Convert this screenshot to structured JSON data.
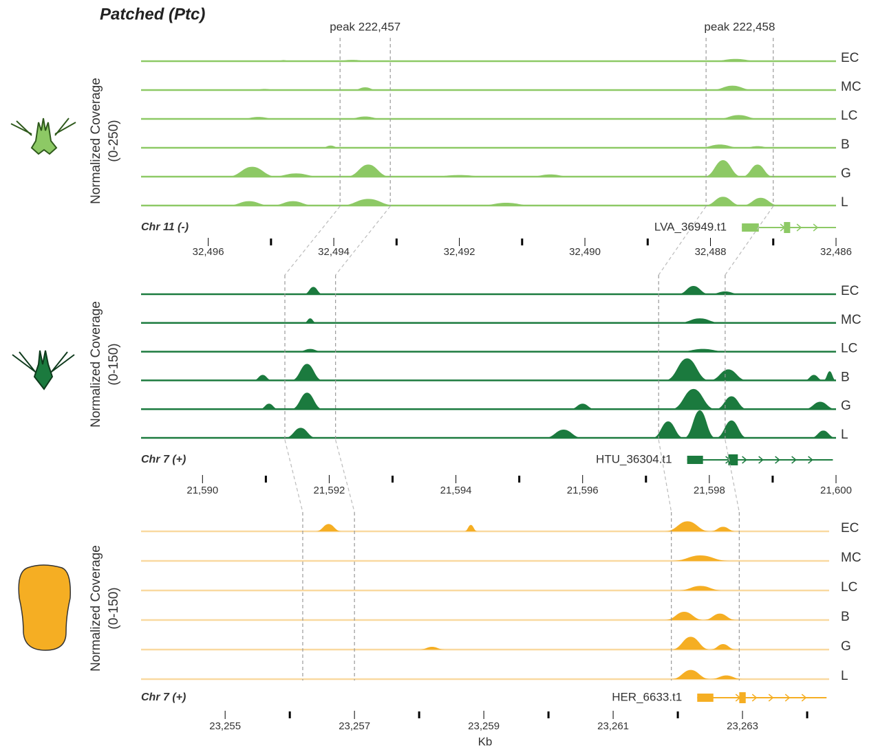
{
  "chart_data": [
    {
      "type": "coverage",
      "title": "Patched (Ptc)",
      "chromosome": "Chr 11 (-)",
      "y_label": "Normalized Coverage",
      "range_label": "(0-250)",
      "ylim": [
        0,
        250
      ],
      "color": "#8dc965",
      "baseline_color": "#8dc965",
      "xlim": [
        32497.07,
        32486.0
      ],
      "xticks": [
        {
          "value": 32496,
          "label": "32,496"
        },
        {
          "value": 32494,
          "label": "32,494"
        },
        {
          "value": 32492,
          "label": "32,492"
        },
        {
          "value": 32490,
          "label": "32,490"
        },
        {
          "value": 32488,
          "label": "32,488"
        },
        {
          "value": 32486,
          "label": "32,486"
        }
      ],
      "minor_ticks": [
        32495,
        32493,
        32491,
        32489,
        32487
      ],
      "peak_regions": [
        {
          "label": "peak 222,457",
          "start": 32493.9,
          "end": 32493.1
        },
        {
          "label": "peak 222,458",
          "start": 32488.07,
          "end": 32487.0
        }
      ],
      "gene": {
        "name": "LVA_36949.t1",
        "start": 32487.5,
        "end": 32486.0,
        "exons": [
          [
            32487.5,
            32487.23
          ],
          [
            32486.83,
            32486.73
          ]
        ]
      },
      "tracks": [
        {
          "name": "EC",
          "peaks": [
            [
              32494.9,
              32494.7,
              10
            ],
            [
              32494.0,
              32493.4,
              12
            ],
            [
              32488.0,
              32487.2,
              20
            ]
          ]
        },
        {
          "name": "MC",
          "peaks": [
            [
              32495.3,
              32494.9,
              10
            ],
            [
              32493.7,
              32493.3,
              25
            ],
            [
              32488.0,
              32487.3,
              40
            ]
          ]
        },
        {
          "name": "LC",
          "peaks": [
            [
              32495.5,
              32494.9,
              18
            ],
            [
              32493.8,
              32493.2,
              22
            ],
            [
              32487.9,
              32487.2,
              35
            ]
          ]
        },
        {
          "name": "B",
          "peaks": [
            [
              32494.2,
              32493.9,
              20
            ],
            [
              32488.2,
              32487.5,
              30
            ],
            [
              32487.5,
              32487.0,
              15
            ]
          ]
        },
        {
          "name": "G",
          "peaks": [
            [
              32495.7,
              32494.9,
              90
            ],
            [
              32495.0,
              32494.2,
              30
            ],
            [
              32493.8,
              32493.1,
              110
            ],
            [
              32492.5,
              32491.5,
              15
            ],
            [
              32490.9,
              32490.2,
              20
            ],
            [
              32488.1,
              32487.5,
              150
            ],
            [
              32487.5,
              32487.0,
              110
            ]
          ]
        },
        {
          "name": "L",
          "peaks": [
            [
              32495.7,
              32495.0,
              40
            ],
            [
              32495.0,
              32494.3,
              40
            ],
            [
              32493.9,
              32493.0,
              60
            ],
            [
              32491.7,
              32490.8,
              25
            ],
            [
              32488.1,
              32487.5,
              80
            ],
            [
              32487.5,
              32486.9,
              70
            ]
          ]
        }
      ]
    },
    {
      "type": "coverage",
      "chromosome": "Chr 7 (+)",
      "y_label": "Normalized Coverage",
      "range_label": "(0-150)",
      "ylim": [
        0,
        150
      ],
      "color": "#1b7a3e",
      "baseline_color": "#1b7a3e",
      "xlim": [
        21589.03,
        21600.0
      ],
      "xticks": [
        {
          "value": 21590,
          "label": "21,590"
        },
        {
          "value": 21592,
          "label": "21,592"
        },
        {
          "value": 21594,
          "label": "21,594"
        },
        {
          "value": 21596,
          "label": "21,596"
        },
        {
          "value": 21598,
          "label": "21,598"
        },
        {
          "value": 21600,
          "label": "21,600"
        }
      ],
      "minor_ticks": [
        21591,
        21593,
        21595,
        21597,
        21599
      ],
      "peak_regions": [
        {
          "start": 21591.3,
          "end": 21592.1
        },
        {
          "start": 21597.2,
          "end": 21598.25
        }
      ],
      "gene": {
        "name": "HTU_36304.t1",
        "start": 21597.65,
        "end": 21599.95,
        "exons": [
          [
            21597.65,
            21597.9
          ],
          [
            21598.3,
            21598.45
          ]
        ]
      },
      "tracks": [
        {
          "name": "EC",
          "peaks": [
            [
              21591.6,
              21591.9,
              40
            ],
            [
              21597.5,
              21598.0,
              45
            ],
            [
              21598.0,
              21598.5,
              15
            ]
          ]
        },
        {
          "name": "MC",
          "peaks": [
            [
              21591.6,
              21591.8,
              25
            ],
            [
              21597.5,
              21598.2,
              25
            ]
          ]
        },
        {
          "name": "LC",
          "peaks": [
            [
              21591.5,
              21591.9,
              15
            ],
            [
              21597.5,
              21598.3,
              15
            ]
          ]
        },
        {
          "name": "B",
          "peaks": [
            [
              21590.8,
              21591.1,
              30
            ],
            [
              21591.4,
              21591.9,
              90
            ],
            [
              21597.3,
              21598.0,
              120
            ],
            [
              21598.0,
              21598.6,
              60
            ],
            [
              21599.5,
              21599.8,
              30
            ],
            [
              21599.8,
              21600.0,
              50
            ]
          ]
        },
        {
          "name": "G",
          "peaks": [
            [
              21590.9,
              21591.2,
              30
            ],
            [
              21591.4,
              21591.9,
              90
            ],
            [
              21595.8,
              21596.2,
              30
            ],
            [
              21597.4,
              21598.1,
              110
            ],
            [
              21598.1,
              21598.6,
              70
            ],
            [
              21599.5,
              21600.0,
              40
            ]
          ]
        },
        {
          "name": "L",
          "peaks": [
            [
              21591.3,
              21591.8,
              55
            ],
            [
              21595.4,
              21596.0,
              45
            ],
            [
              21597.1,
              21597.6,
              90
            ],
            [
              21597.6,
              21598.1,
              150
            ],
            [
              21598.1,
              21598.6,
              95
            ],
            [
              21599.6,
              21600.0,
              40
            ]
          ]
        }
      ]
    },
    {
      "type": "coverage",
      "chromosome": "Chr 7 (+)",
      "y_label": "Normalized Coverage",
      "range_label": "(0-150)",
      "ylim": [
        0,
        150
      ],
      "color": "#f5ae23",
      "baseline_color": "#f9d9a0",
      "x_label": "Kb",
      "xlim": [
        23253.7,
        23264.34
      ],
      "xticks": [
        {
          "value": 23255,
          "label": "23,255"
        },
        {
          "value": 23257,
          "label": "23,257"
        },
        {
          "value": 23259,
          "label": "23,259"
        },
        {
          "value": 23261,
          "label": "23,261"
        },
        {
          "value": 23263,
          "label": "23,263"
        }
      ],
      "minor_ticks": [
        23256,
        23258,
        23260,
        23262,
        23264
      ],
      "peak_regions": [
        {
          "start": 23256.2,
          "end": 23257.0
        },
        {
          "start": 23261.9,
          "end": 23262.95
        }
      ],
      "gene": {
        "name": "HER_6633.t1",
        "start": 23262.3,
        "end": 23264.3,
        "exons": [
          [
            23262.3,
            23262.55
          ],
          [
            23262.95,
            23263.05
          ]
        ]
      },
      "tracks": [
        {
          "name": "EC",
          "peaks": [
            [
              23256.4,
              23256.8,
              40
            ],
            [
              23258.7,
              23258.9,
              35
            ],
            [
              23261.8,
              23262.5,
              55
            ],
            [
              23262.5,
              23262.9,
              25
            ]
          ]
        },
        {
          "name": "MC",
          "peaks": [
            [
              23261.9,
              23262.8,
              30
            ]
          ]
        },
        {
          "name": "LC",
          "peaks": [
            [
              23262.0,
              23262.7,
              25
            ]
          ]
        },
        {
          "name": "B",
          "peaks": [
            [
              23261.8,
              23262.4,
              45
            ],
            [
              23262.4,
              23262.9,
              35
            ]
          ]
        },
        {
          "name": "G",
          "peaks": [
            [
              23258.0,
              23258.4,
              15
            ],
            [
              23261.9,
              23262.5,
              70
            ],
            [
              23262.5,
              23262.9,
              30
            ]
          ]
        },
        {
          "name": "L",
          "peaks": [
            [
              23261.9,
              23262.5,
              50
            ],
            [
              23262.5,
              23263.0,
              20
            ]
          ]
        }
      ]
    }
  ]
}
